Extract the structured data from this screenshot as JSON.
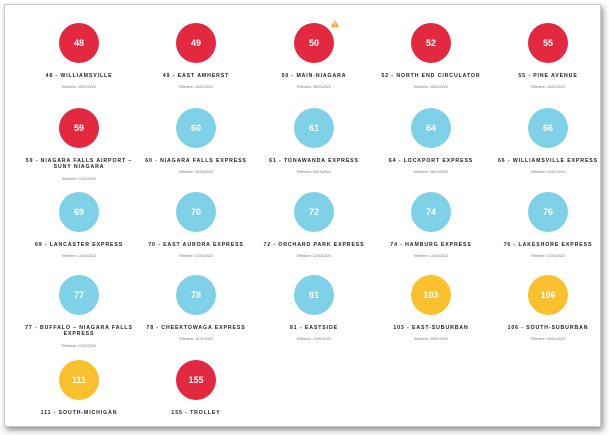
{
  "colors": {
    "red": "#e3293f",
    "blue": "#7fd1e8",
    "yellow": "#fbc02d",
    "alert": "#f5a623"
  },
  "routes": [
    {
      "number": "48",
      "name": "48 - WILLIAMSVILLE",
      "effective": "Effective: 09/01/2020",
      "color": "red"
    },
    {
      "number": "49",
      "name": "49 - EAST AMHERST",
      "effective": "Effective: 12/01/2020",
      "color": "red"
    },
    {
      "number": "50",
      "name": "50 - MAIN-NIAGARA",
      "effective": "Effective: 08/31/2020",
      "color": "red",
      "alert": "warning-icon"
    },
    {
      "number": "52",
      "name": "52 - NORTH END CIRCULATOR",
      "effective": "Effective: 08/31/2020",
      "color": "red"
    },
    {
      "number": "55",
      "name": "55 - PINE AVENUE",
      "effective": "Effective: 12/01/2024",
      "color": "red"
    },
    {
      "number": "59",
      "name": "59 - NIAGARA FALLS AIRPORT – SUNY NIAGARA",
      "effective": "Effective: 12/01/2020",
      "color": "red"
    },
    {
      "number": "60",
      "name": "60 - NIAGARA FALLS EXPRESS",
      "effective": "Effective: 09/03/2023",
      "color": "blue"
    },
    {
      "number": "61",
      "name": "61 - TONAWANDA EXPRESS",
      "effective": "Effective: 08/10/2023",
      "color": "blue"
    },
    {
      "number": "64",
      "name": "64 - LOCKPORT EXPRESS",
      "effective": "Effective: 08/10/2023",
      "color": "blue"
    },
    {
      "number": "66",
      "name": "66 - WILLIAMSVILLE EXPRESS",
      "effective": "Effective: 12/01/2024",
      "color": "blue"
    },
    {
      "number": "69",
      "name": "69 - LANCASTER EXPRESS",
      "effective": "Effective: 12/04/2023",
      "color": "blue"
    },
    {
      "number": "70",
      "name": "70 - EAST AURORA EXPRESS",
      "effective": "Effective: 12/04/2023",
      "color": "blue"
    },
    {
      "number": "72",
      "name": "72 - ORCHARD PARK EXPRESS",
      "effective": "Effective: 12/03/2020",
      "color": "blue"
    },
    {
      "number": "74",
      "name": "74 - HAMBURG EXPRESS",
      "effective": "Effective: 12/04/2023",
      "color": "blue"
    },
    {
      "number": "76",
      "name": "76 - LAKESHORE EXPRESS",
      "effective": "Effective: 12/04/2023",
      "color": "blue"
    },
    {
      "number": "77",
      "name": "77 - BUFFALO – NIAGARA FALLS EXPRESS",
      "effective": "Effective: 12/01/2020",
      "color": "blue"
    },
    {
      "number": "78",
      "name": "78 - CHEEKTOWAGA EXPRESS",
      "effective": "Effective: 11/01/2020",
      "color": "blue"
    },
    {
      "number": "81",
      "name": "81 - EASTSIDE",
      "effective": "Effective: 12/01/2020",
      "color": "blue"
    },
    {
      "number": "103",
      "name": "103 - EAST-SUBURBAN",
      "effective": "Effective: 09/01/2023",
      "color": "yellow"
    },
    {
      "number": "106",
      "name": "106 - SOUTH-SUBURBAN",
      "effective": "Effective: 09/01/2023",
      "color": "yellow"
    },
    {
      "number": "111",
      "name": "111 - SOUTH-MICHIGAN",
      "effective": "",
      "color": "yellow"
    },
    {
      "number": "155",
      "name": "155 - TROLLEY",
      "effective": "",
      "color": "red"
    }
  ]
}
